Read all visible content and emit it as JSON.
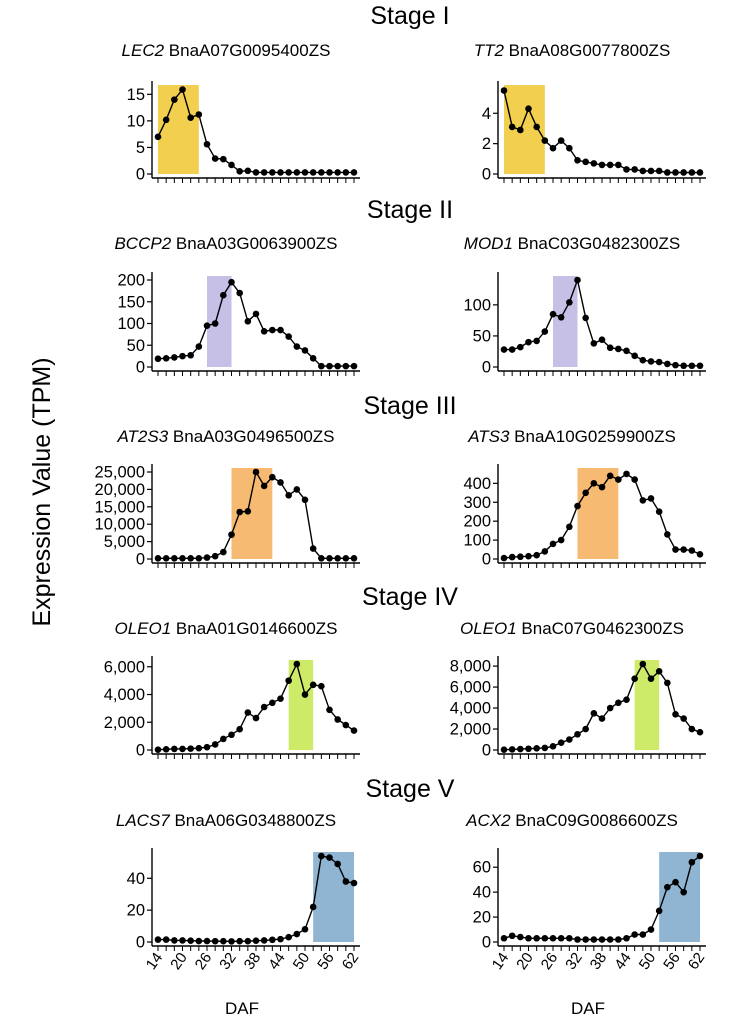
{
  "figure": {
    "ylabel": "Expression Value (TPM)",
    "xlabel": "DAF"
  },
  "chart_data": [
    {
      "type": "line",
      "stage": "Stage I",
      "gene": "LEC2",
      "gene_id": "BnaA07G0095400ZS",
      "x": [
        14,
        16,
        18,
        20,
        22,
        24,
        26,
        28,
        30,
        32,
        34,
        36,
        38,
        40,
        42,
        44,
        46,
        48,
        50,
        52,
        54,
        56,
        58,
        60,
        62
      ],
      "values": [
        7.0,
        10.2,
        14.0,
        15.9,
        10.6,
        11.2,
        5.6,
        2.9,
        2.8,
        1.7,
        0.5,
        0.6,
        0.3,
        0.3,
        0.3,
        0.3,
        0.3,
        0.3,
        0.3,
        0.3,
        0.3,
        0.3,
        0.3,
        0.3,
        0.3
      ],
      "ylim": [
        0,
        16
      ],
      "yticks": [
        0,
        5,
        10,
        15
      ],
      "highlight": [
        14,
        24
      ],
      "highlight_color": "#F2CF4E"
    },
    {
      "type": "line",
      "stage": "Stage I",
      "gene": "TT2",
      "gene_id": "BnaA08G0077800ZS",
      "x": [
        14,
        16,
        18,
        20,
        22,
        24,
        26,
        28,
        30,
        32,
        34,
        36,
        38,
        40,
        42,
        44,
        46,
        48,
        50,
        52,
        54,
        56,
        58,
        60,
        62
      ],
      "values": [
        5.5,
        3.1,
        2.9,
        4.3,
        3.1,
        2.2,
        1.7,
        2.2,
        1.7,
        0.9,
        0.8,
        0.7,
        0.6,
        0.6,
        0.6,
        0.3,
        0.3,
        0.2,
        0.2,
        0.2,
        0.1,
        0.1,
        0.1,
        0.1,
        0.1
      ],
      "ylim": [
        0,
        5.6
      ],
      "yticks": [
        0,
        2,
        4
      ],
      "highlight": [
        14,
        24
      ],
      "highlight_color": "#F2CF4E"
    },
    {
      "type": "line",
      "stage": "Stage II",
      "gene": "BCCP2",
      "gene_id": "BnaA03G0063900ZS",
      "x": [
        14,
        16,
        18,
        20,
        22,
        24,
        26,
        28,
        30,
        32,
        34,
        36,
        38,
        40,
        42,
        44,
        46,
        48,
        50,
        52,
        54,
        56,
        58,
        60,
        62
      ],
      "values": [
        19,
        20,
        22,
        25,
        27,
        47,
        95,
        100,
        165,
        195,
        170,
        105,
        122,
        82,
        85,
        85,
        70,
        47,
        38,
        20,
        2,
        2,
        2,
        2,
        2
      ],
      "ylim": [
        0,
        200
      ],
      "yticks": [
        0,
        50,
        100,
        150,
        200
      ],
      "highlight": [
        26,
        32
      ],
      "highlight_color": "#C6BFE6"
    },
    {
      "type": "line",
      "stage": "Stage II",
      "gene": "MOD1",
      "gene_id": "BnaC03G0482300ZS",
      "x": [
        14,
        16,
        18,
        20,
        22,
        24,
        26,
        28,
        30,
        32,
        34,
        36,
        38,
        40,
        42,
        44,
        46,
        48,
        50,
        52,
        54,
        56,
        58,
        60,
        62
      ],
      "values": [
        28,
        28,
        32,
        40,
        42,
        57,
        85,
        80,
        104,
        140,
        79,
        38,
        44,
        31,
        29,
        26,
        18,
        11,
        9,
        8,
        5,
        3,
        2,
        2,
        2
      ],
      "ylim": [
        0,
        140
      ],
      "yticks": [
        0,
        50,
        100
      ],
      "highlight": [
        26,
        32
      ],
      "highlight_color": "#C6BFE6"
    },
    {
      "type": "line",
      "stage": "Stage III",
      "gene": "AT2S3",
      "gene_id": "BnaA03G0496500ZS",
      "x": [
        14,
        16,
        18,
        20,
        22,
        24,
        26,
        28,
        30,
        32,
        34,
        36,
        38,
        40,
        42,
        44,
        46,
        48,
        50,
        52,
        54,
        56,
        58,
        60,
        62
      ],
      "values": [
        200,
        200,
        200,
        200,
        200,
        200,
        400,
        800,
        2000,
        7000,
        13500,
        13700,
        25000,
        21000,
        23500,
        22000,
        18300,
        20000,
        17000,
        3000,
        200,
        200,
        200,
        200,
        200
      ],
      "ylim": [
        0,
        25000
      ],
      "yticks": [
        0,
        5000,
        10000,
        15000,
        20000,
        25000
      ],
      "highlight": [
        32,
        42
      ],
      "highlight_color": "#F7BA73"
    },
    {
      "type": "line",
      "stage": "Stage III",
      "gene": "ATS3",
      "gene_id": "BnaA10G0259900ZS",
      "x": [
        14,
        16,
        18,
        20,
        22,
        24,
        26,
        28,
        30,
        32,
        34,
        36,
        38,
        40,
        42,
        44,
        46,
        48,
        50,
        52,
        54,
        56,
        58,
        60,
        62
      ],
      "values": [
        5,
        10,
        12,
        15,
        20,
        40,
        80,
        100,
        170,
        280,
        350,
        400,
        380,
        440,
        420,
        450,
        420,
        310,
        320,
        250,
        130,
        50,
        50,
        45,
        25
      ],
      "ylim": [
        0,
        460
      ],
      "yticks": [
        0,
        100,
        200,
        300,
        400
      ],
      "highlight": [
        32,
        42
      ],
      "highlight_color": "#F7BA73"
    },
    {
      "type": "line",
      "stage": "Stage IV",
      "gene": "OLEO1",
      "gene_id": "BnaA01G0146600ZS",
      "x": [
        14,
        16,
        18,
        20,
        22,
        24,
        26,
        28,
        30,
        32,
        34,
        36,
        38,
        40,
        42,
        44,
        46,
        48,
        50,
        52,
        54,
        56,
        58,
        60,
        62
      ],
      "values": [
        20,
        50,
        80,
        80,
        100,
        130,
        200,
        400,
        800,
        1100,
        1500,
        2700,
        2300,
        3100,
        3400,
        3700,
        5000,
        6200,
        4000,
        4700,
        4600,
        2900,
        2200,
        1800,
        1400
      ],
      "ylim": [
        0,
        6200
      ],
      "yticks": [
        0,
        2000,
        4000,
        6000
      ],
      "highlight": [
        46,
        52
      ],
      "highlight_color": "#CDEA69"
    },
    {
      "type": "line",
      "stage": "Stage IV",
      "gene": "OLEO1",
      "gene_id": "BnaC07G0462300ZS",
      "x": [
        14,
        16,
        18,
        20,
        22,
        24,
        26,
        28,
        30,
        32,
        34,
        36,
        38,
        40,
        42,
        44,
        46,
        48,
        50,
        52,
        54,
        56,
        58,
        60,
        62
      ],
      "values": [
        30,
        60,
        90,
        120,
        160,
        200,
        350,
        700,
        1000,
        1500,
        2000,
        3500,
        3000,
        4000,
        4500,
        4800,
        6800,
        8200,
        6800,
        7500,
        6400,
        3400,
        3000,
        2000,
        1700
      ],
      "ylim": [
        0,
        8200
      ],
      "yticks": [
        0,
        2000,
        4000,
        6000,
        8000
      ],
      "highlight": [
        46,
        52
      ],
      "highlight_color": "#CDEA69"
    },
    {
      "type": "line",
      "stage": "Stage V",
      "gene": "LACS7",
      "gene_id": "BnaA06G0348800ZS",
      "x": [
        14,
        16,
        18,
        20,
        22,
        24,
        26,
        28,
        30,
        32,
        34,
        36,
        38,
        40,
        42,
        44,
        46,
        48,
        50,
        52,
        54,
        56,
        58,
        60,
        62
      ],
      "values": [
        1.5,
        1.5,
        1.0,
        1.0,
        0.8,
        0.6,
        0.6,
        0.5,
        0.5,
        0.4,
        0.5,
        0.5,
        0.8,
        1.0,
        1.4,
        1.8,
        3.0,
        5.0,
        8.0,
        22,
        54,
        53,
        49,
        38,
        37
      ],
      "ylim": [
        0,
        54
      ],
      "yticks": [
        0,
        20,
        40
      ],
      "highlight": [
        52,
        62
      ],
      "highlight_color": "#8FB5D3"
    },
    {
      "type": "line",
      "stage": "Stage V",
      "gene": "ACX2",
      "gene_id": "BnaC09G0086600ZS",
      "x": [
        14,
        16,
        18,
        20,
        22,
        24,
        26,
        28,
        30,
        32,
        34,
        36,
        38,
        40,
        42,
        44,
        46,
        48,
        50,
        52,
        54,
        56,
        58,
        60,
        62
      ],
      "values": [
        3,
        5,
        4,
        3,
        3,
        3,
        3,
        3,
        3,
        2,
        2,
        2,
        2,
        2,
        2,
        3,
        6,
        6,
        10,
        25,
        44,
        48,
        40,
        64,
        69
      ],
      "ylim": [
        0,
        69
      ],
      "yticks": [
        0,
        20,
        40,
        60
      ],
      "highlight": [
        52,
        62
      ],
      "highlight_color": "#8FB5D3"
    }
  ]
}
